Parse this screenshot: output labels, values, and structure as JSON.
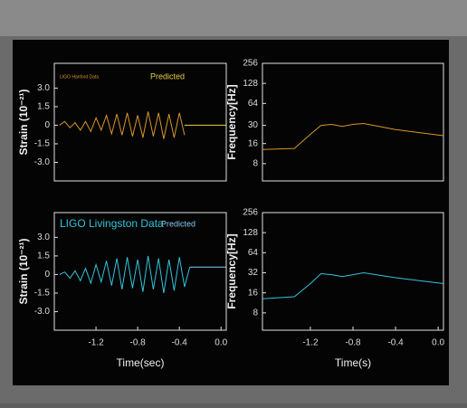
{
  "chart_data": [
    {
      "type": "line",
      "ylabel": "Strain (10⁻²¹)",
      "xlim": [
        -1.6,
        0.05
      ],
      "ylim": [
        -4.5,
        5
      ],
      "yticks": [
        {
          "value": 3,
          "label": "3.0"
        },
        1.5,
        0,
        -1.5,
        {
          "value": -3,
          "label": "-3.0"
        }
      ],
      "series": [
        {
          "name": "LIGO Hanford Data",
          "color": "#d8962c",
          "x": [
            -1.55,
            -1.5,
            -1.45,
            -1.4,
            -1.35,
            -1.3,
            -1.25,
            -1.2,
            -1.15,
            -1.1,
            -1.05,
            -1.0,
            -0.95,
            -0.9,
            -0.85,
            -0.8,
            -0.75,
            -0.7,
            -0.65,
            -0.6,
            -0.55,
            -0.5,
            -0.45,
            -0.4,
            -0.35
          ],
          "values": [
            0,
            0.3,
            -0.2,
            0.2,
            -0.4,
            0.3,
            -0.5,
            0.6,
            -0.4,
            0.8,
            -0.7,
            0.9,
            -0.8,
            1.0,
            -0.9,
            0.8,
            -1.0,
            1.1,
            -0.9,
            1.0,
            -1.1,
            0.9,
            -1.0,
            1.0,
            -0.8
          ]
        },
        {
          "name": "Predicted",
          "color": "#e6d040",
          "x": [
            -0.35,
            0.05
          ],
          "values": [
            0,
            0
          ]
        }
      ]
    },
    {
      "type": "line",
      "ylabel": "Frequency[Hz]",
      "log_y": true,
      "xlim": [
        -1.65,
        0.05
      ],
      "ylim": [
        4.4,
        256
      ],
      "yticks": [
        256,
        128,
        64,
        30,
        16,
        8
      ],
      "series": [
        {
          "color": "#d8962c",
          "x": [
            -1.65,
            -1.35,
            -1.2,
            -1.1,
            -1.0,
            -0.9,
            -0.8,
            -0.7,
            -0.4,
            0.05
          ],
          "values": [
            13,
            13.5,
            22,
            30,
            31,
            29,
            31,
            32,
            26,
            21
          ]
        }
      ]
    },
    {
      "type": "line",
      "ylabel": "Strain (10⁻²¹)",
      "xlabel": "Time(sec)",
      "xlim": [
        -1.6,
        0.05
      ],
      "ylim": [
        -4.5,
        5
      ],
      "yticks": [
        {
          "value": 3,
          "label": "3.0"
        },
        1.5,
        0,
        -1.5,
        {
          "value": -3,
          "label": "-3.0"
        }
      ],
      "xticks": [
        -1.2,
        -0.8,
        -0.4,
        {
          "value": 0,
          "label": "0.0"
        }
      ],
      "series": [
        {
          "name": "LIGO Livingston Data",
          "color": "#33c4dc",
          "x": [
            -1.55,
            -1.5,
            -1.45,
            -1.4,
            -1.35,
            -1.3,
            -1.25,
            -1.2,
            -1.15,
            -1.1,
            -1.05,
            -1.0,
            -0.95,
            -0.9,
            -0.85,
            -0.8,
            -0.75,
            -0.7,
            -0.65,
            -0.6,
            -0.55,
            -0.5,
            -0.45,
            -0.4,
            -0.35,
            -0.3
          ],
          "values": [
            0,
            0.2,
            -0.3,
            0.3,
            -0.5,
            0.5,
            -0.7,
            0.8,
            -0.6,
            1.1,
            -0.9,
            1.3,
            -1.2,
            1.4,
            -1.1,
            1.2,
            -1.4,
            1.5,
            -1.2,
            1.3,
            -1.5,
            1.2,
            -1.3,
            1.4,
            -1.0,
            0.6
          ]
        },
        {
          "name": "Predicted",
          "color": "#8ccaf0",
          "x": [
            -0.3,
            0.05
          ],
          "values": [
            0.6,
            0.6
          ]
        }
      ]
    },
    {
      "type": "line",
      "ylabel": "Frequency[Hz]",
      "xlabel": "Time(s)",
      "log_y": true,
      "xlim": [
        -1.65,
        0.05
      ],
      "ylim": [
        4.4,
        256
      ],
      "yticks": [
        256,
        128,
        64,
        32,
        16,
        8
      ],
      "xticks": [
        -1.2,
        -0.8,
        -0.4,
        {
          "value": 0,
          "label": "0.0"
        }
      ],
      "series": [
        {
          "color": "#33c4dc",
          "x": [
            -1.65,
            -1.35,
            -1.2,
            -1.1,
            -1.0,
            -0.9,
            -0.8,
            -0.7,
            -0.4,
            0.05
          ],
          "values": [
            13,
            14,
            22,
            31,
            30,
            28,
            30,
            32,
            27,
            22
          ]
        }
      ]
    }
  ]
}
